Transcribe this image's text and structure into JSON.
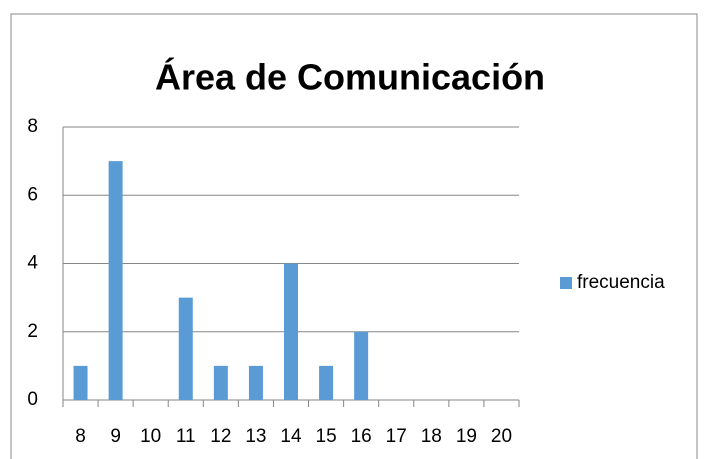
{
  "chart_data": {
    "type": "bar",
    "title": "Área de Comunicación",
    "categories": [
      "8",
      "9",
      "10",
      "11",
      "12",
      "13",
      "14",
      "15",
      "16",
      "17",
      "18",
      "19",
      "20"
    ],
    "series": [
      {
        "name": "frecuencia",
        "color": "#5b9bd5",
        "values": [
          1,
          7,
          0,
          3,
          1,
          1,
          4,
          1,
          2,
          0,
          0,
          0,
          0
        ]
      }
    ],
    "ylim": [
      0,
      8
    ],
    "yticks": [
      0,
      2,
      4,
      6,
      8
    ],
    "grid": true,
    "legend": "right"
  }
}
